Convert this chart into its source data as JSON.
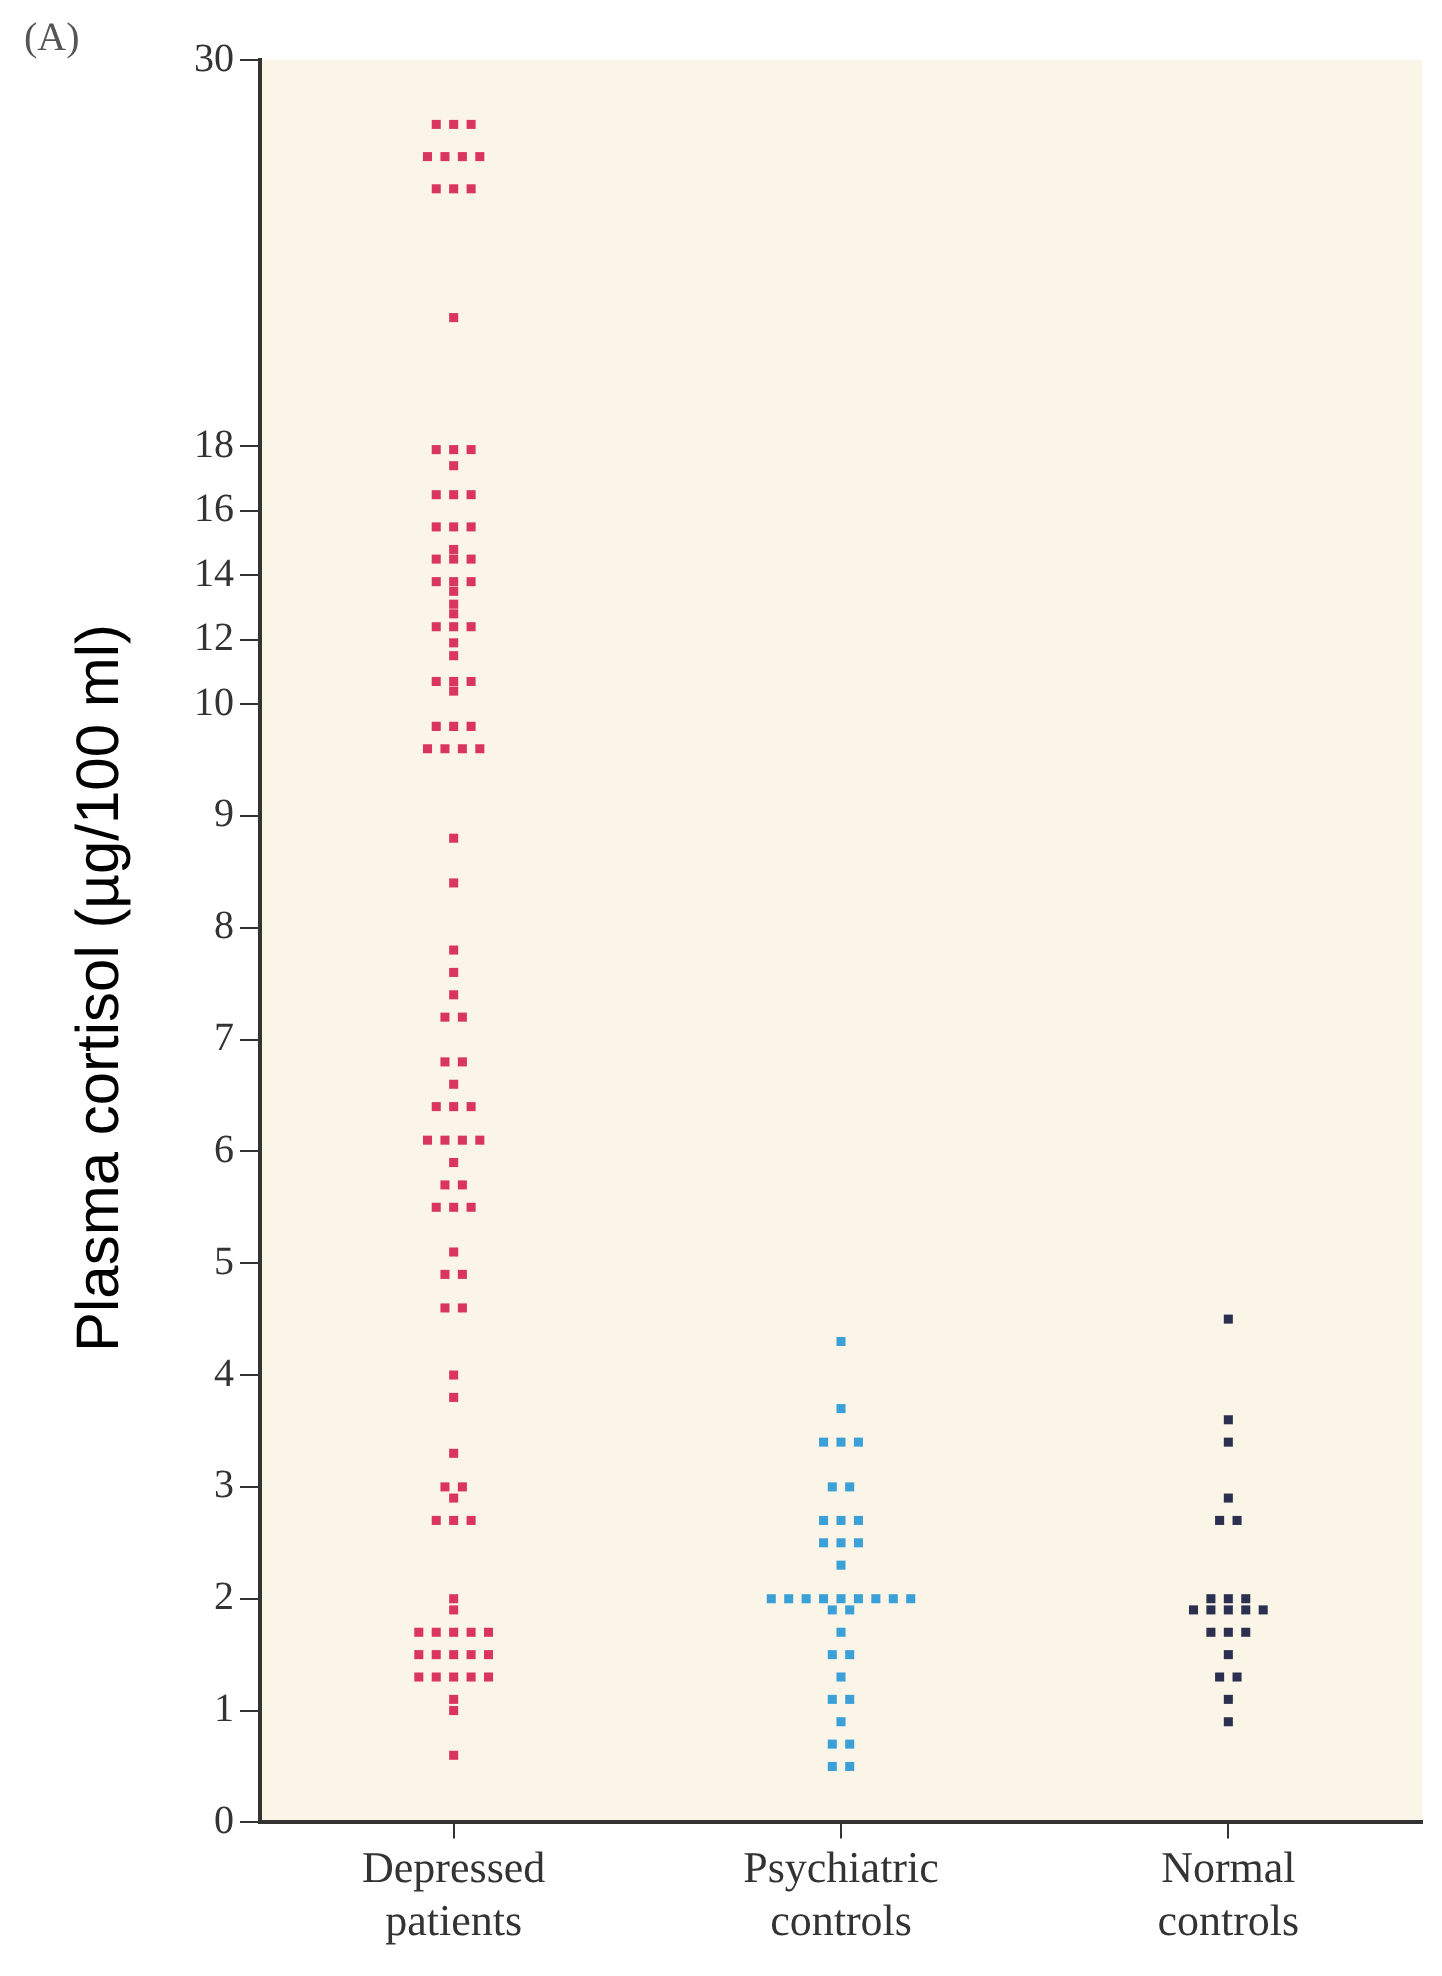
{
  "chart_data": [
    {
      "type": "scatter",
      "categories": [
        "Depressed patients",
        "Psychiatric controls",
        "Normal controls"
      ],
      "annotations": [
        "(A)"
      ],
      "ylim": [
        10,
        30
      ],
      "yticks": [
        12,
        14,
        16,
        18,
        30
      ],
      "tick_labels": "y",
      "grid": false,
      "legend": false,
      "marker": "square",
      "series": [
        {
          "color": "#d9355f",
          "x": [
            "Depressed patients",
            "Depressed patients",
            "Depressed patients",
            "Depressed patients",
            "Depressed patients",
            "Depressed patients",
            "Depressed patients",
            "Depressed patients",
            "Depressed patients",
            "Depressed patients",
            "Depressed patients",
            "Depressed patients",
            "Depressed patients",
            "Depressed patients",
            "Depressed patients",
            "Depressed patients",
            "Depressed patients",
            "Depressed patients",
            "Depressed patients",
            "Depressed patients",
            "Depressed patients",
            "Depressed patients",
            "Depressed patients",
            "Depressed patients",
            "Depressed patients",
            "Depressed patients",
            "Depressed patients",
            "Depressed patients",
            "Depressed patients",
            "Depressed patients",
            "Depressed patients",
            "Depressed patients",
            "Depressed patients",
            "Depressed patients",
            "Depressed patients",
            "Depressed patients",
            "Depressed patients",
            "Depressed patients",
            "Depressed patients",
            "Depressed patients"
          ],
          "values": [
            28,
            28,
            28,
            27,
            27,
            27,
            27,
            26,
            26,
            26,
            22,
            17.9,
            17.9,
            17.9,
            17.4,
            16.5,
            16.5,
            16.5,
            15.5,
            15.5,
            15.5,
            14.8,
            14.5,
            14.5,
            14.5,
            13.8,
            13.8,
            13.8,
            13.5,
            13.1,
            12.8,
            12.4,
            12.4,
            12.4,
            11.9,
            11.5,
            10.7,
            10.7,
            10.7,
            10.4
          ]
        }
      ]
    },
    {
      "type": "scatter",
      "categories": [
        "Depressed patients",
        "Psychiatric controls",
        "Normal controls"
      ],
      "ylabel": "Plasma cortisol (µg/100 ml)",
      "ylim": [
        0,
        10
      ],
      "yticks": [
        0,
        1,
        2,
        3,
        4,
        5,
        6,
        7,
        8,
        9,
        10
      ],
      "grid": false,
      "legend": false,
      "marker": "square",
      "series": [
        {
          "color": "#d9355f",
          "x": [
            "Depressed patients",
            "Depressed patients",
            "Depressed patients",
            "Depressed patients",
            "Depressed patients",
            "Depressed patients",
            "Depressed patients",
            "Depressed patients",
            "Depressed patients",
            "Depressed patients",
            "Depressed patients",
            "Depressed patients",
            "Depressed patients",
            "Depressed patients",
            "Depressed patients",
            "Depressed patients",
            "Depressed patients",
            "Depressed patients",
            "Depressed patients",
            "Depressed patients",
            "Depressed patients",
            "Depressed patients",
            "Depressed patients",
            "Depressed patients",
            "Depressed patients",
            "Depressed patients",
            "Depressed patients",
            "Depressed patients",
            "Depressed patients",
            "Depressed patients",
            "Depressed patients",
            "Depressed patients",
            "Depressed patients",
            "Depressed patients",
            "Depressed patients",
            "Depressed patients",
            "Depressed patients",
            "Depressed patients",
            "Depressed patients",
            "Depressed patients",
            "Depressed patients",
            "Depressed patients",
            "Depressed patients",
            "Depressed patients",
            "Depressed patients",
            "Depressed patients",
            "Depressed patients",
            "Depressed patients",
            "Depressed patients",
            "Depressed patients",
            "Depressed patients",
            "Depressed patients",
            "Depressed patients",
            "Depressed patients",
            "Depressed patients",
            "Depressed patients",
            "Depressed patients",
            "Depressed patients",
            "Depressed patients",
            "Depressed patients",
            "Depressed patients",
            "Depressed patients",
            "Depressed patients",
            "Depressed patients"
          ],
          "values": [
            9.8,
            9.8,
            9.8,
            9.6,
            9.6,
            9.6,
            9.6,
            8.8,
            8.4,
            7.8,
            7.6,
            7.4,
            7.2,
            7.2,
            6.8,
            6.8,
            6.6,
            6.4,
            6.4,
            6.4,
            6.1,
            6.1,
            6.1,
            6.1,
            5.9,
            5.7,
            5.7,
            5.5,
            5.5,
            5.5,
            5.1,
            4.9,
            4.9,
            4.6,
            4.6,
            4.0,
            3.8,
            3.3,
            3.0,
            3.0,
            2.9,
            2.7,
            2.7,
            2.7,
            2.0,
            1.9,
            1.7,
            1.7,
            1.7,
            1.7,
            1.7,
            1.5,
            1.5,
            1.5,
            1.5,
            1.5,
            1.3,
            1.3,
            1.3,
            1.3,
            1.3,
            1.1,
            1.0,
            0.6
          ]
        },
        {
          "color": "#3b9fd8",
          "x": [
            "Psychiatric controls",
            "Psychiatric controls",
            "Psychiatric controls",
            "Psychiatric controls",
            "Psychiatric controls",
            "Psychiatric controls",
            "Psychiatric controls",
            "Psychiatric controls",
            "Psychiatric controls",
            "Psychiatric controls",
            "Psychiatric controls",
            "Psychiatric controls",
            "Psychiatric controls",
            "Psychiatric controls",
            "Psychiatric controls",
            "Psychiatric controls",
            "Psychiatric controls",
            "Psychiatric controls",
            "Psychiatric controls",
            "Psychiatric controls",
            "Psychiatric controls",
            "Psychiatric controls",
            "Psychiatric controls",
            "Psychiatric controls",
            "Psychiatric controls",
            "Psychiatric controls",
            "Psychiatric controls",
            "Psychiatric controls",
            "Psychiatric controls",
            "Psychiatric controls",
            "Psychiatric controls",
            "Psychiatric controls",
            "Psychiatric controls",
            "Psychiatric controls",
            "Psychiatric controls",
            "Psychiatric controls"
          ],
          "values": [
            4.3,
            3.7,
            3.4,
            3.4,
            3.4,
            3.0,
            3.0,
            2.7,
            2.7,
            2.7,
            2.5,
            2.5,
            2.5,
            2.3,
            2.0,
            2.0,
            2.0,
            2.0,
            2.0,
            2.0,
            2.0,
            2.0,
            2.0,
            1.9,
            1.9,
            1.7,
            1.5,
            1.5,
            1.3,
            1.1,
            1.1,
            0.9,
            0.7,
            0.7,
            0.5,
            0.5
          ]
        },
        {
          "color": "#2b3050",
          "x": [
            "Normal controls",
            "Normal controls",
            "Normal controls",
            "Normal controls",
            "Normal controls",
            "Normal controls",
            "Normal controls",
            "Normal controls",
            "Normal controls",
            "Normal controls",
            "Normal controls",
            "Normal controls",
            "Normal controls",
            "Normal controls",
            "Normal controls",
            "Normal controls",
            "Normal controls",
            "Normal controls",
            "Normal controls",
            "Normal controls",
            "Normal controls",
            "Normal controls"
          ],
          "values": [
            4.5,
            3.6,
            3.4,
            2.9,
            2.7,
            2.7,
            2.0,
            2.0,
            2.0,
            1.9,
            1.9,
            1.9,
            1.9,
            1.9,
            1.7,
            1.7,
            1.7,
            1.5,
            1.3,
            1.3,
            1.1,
            0.9
          ]
        }
      ]
    }
  ]
}
